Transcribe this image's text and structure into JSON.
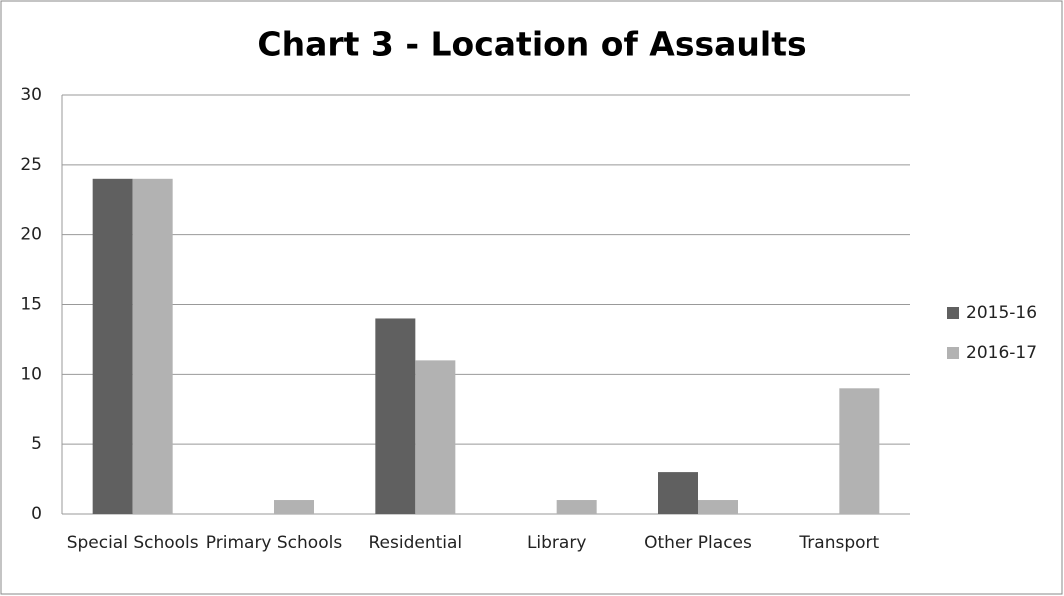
{
  "chart_data": {
    "type": "bar",
    "title": "Chart 3 - Location of Assaults",
    "categories": [
      "Special Schools",
      "Primary Schools",
      "Residential",
      "Library",
      "Other Places",
      "Transport"
    ],
    "series": [
      {
        "name": "2015-16",
        "color": "#606060",
        "values": [
          24,
          0,
          14,
          0,
          3,
          0
        ]
      },
      {
        "name": "2016-17",
        "color": "#b2b2b2",
        "values": [
          24,
          1,
          11,
          1,
          1,
          9
        ]
      }
    ],
    "ylim": [
      0,
      30
    ],
    "yticks": [
      0,
      5,
      10,
      15,
      20,
      25,
      30
    ],
    "grid": true,
    "legend": "right"
  }
}
